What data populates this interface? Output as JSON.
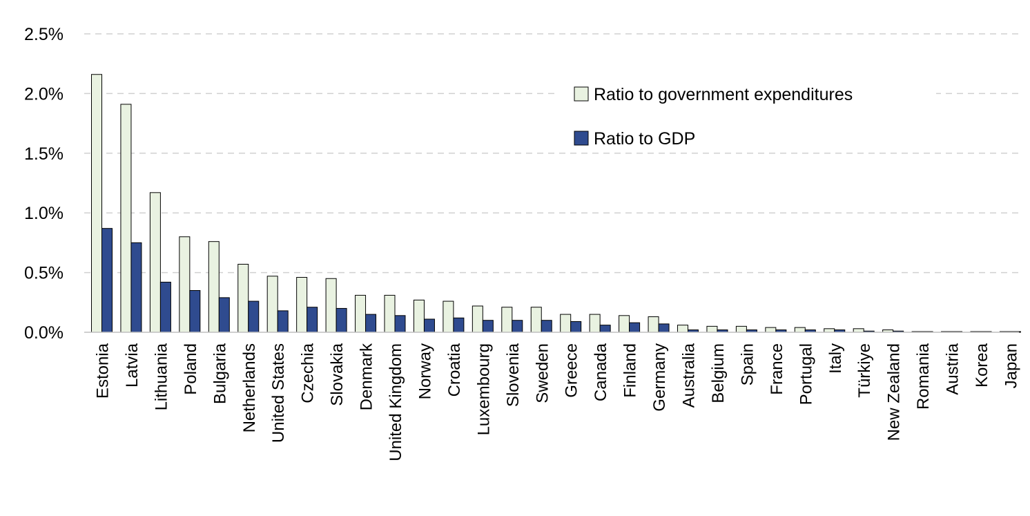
{
  "chart_data": {
    "type": "bar",
    "categories": [
      "Estonia",
      "Latvia",
      "Lithuania",
      "Poland",
      "Bulgaria",
      "Netherlands",
      "United States",
      "Czechia",
      "Slovakia",
      "Denmark",
      "United Kingdom",
      "Norway",
      "Croatia",
      "Luxembourg",
      "Slovenia",
      "Sweden",
      "Greece",
      "Canada",
      "Finland",
      "Germany",
      "Australia",
      "Belgium",
      "Spain",
      "France",
      "Portugal",
      "Italy",
      "Türkiye",
      "New Zealand",
      "Romania",
      "Austria",
      "Korea",
      "Japan"
    ],
    "series": [
      {
        "name": "Ratio to government expenditures",
        "color": "#e9f2e1",
        "values": [
          2.16,
          1.91,
          1.17,
          0.8,
          0.76,
          0.57,
          0.47,
          0.46,
          0.45,
          0.31,
          0.31,
          0.27,
          0.26,
          0.22,
          0.21,
          0.21,
          0.15,
          0.15,
          0.14,
          0.13,
          0.06,
          0.05,
          0.05,
          0.04,
          0.04,
          0.03,
          0.03,
          0.02,
          0.005,
          0.005,
          0.005,
          0.005
        ]
      },
      {
        "name": "Ratio to GDP",
        "color": "#2f4b8f",
        "values": [
          0.87,
          0.75,
          0.42,
          0.35,
          0.29,
          0.26,
          0.18,
          0.21,
          0.2,
          0.15,
          0.14,
          0.11,
          0.12,
          0.1,
          0.1,
          0.1,
          0.09,
          0.06,
          0.08,
          0.07,
          0.02,
          0.02,
          0.02,
          0.02,
          0.02,
          0.02,
          0.01,
          0.01,
          0.005,
          0.005,
          0.005,
          0.005
        ]
      }
    ],
    "y_ticks": [
      "0.0%",
      "0.5%",
      "1.0%",
      "1.5%",
      "2.0%",
      "2.5%"
    ],
    "ylim": [
      0,
      2.5
    ],
    "grid": true,
    "grid_style": "dashed",
    "legend_position": "top-right"
  }
}
